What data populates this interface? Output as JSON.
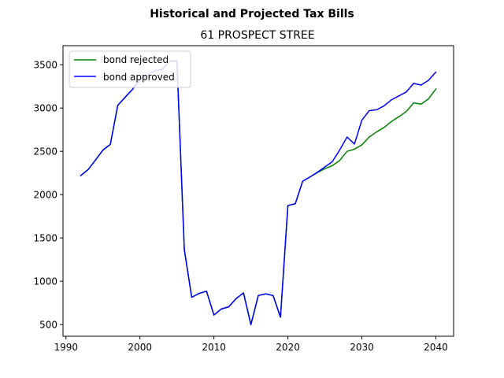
{
  "chart_data": {
    "type": "line",
    "suptitle": "Historical and Projected Tax Bills",
    "title": "61 PROSPECT STREE",
    "xlabel": "",
    "ylabel": "",
    "xlim": [
      1989.6,
      2042.4
    ],
    "ylim": [
      365,
      3720
    ],
    "xticks": [
      1990,
      2000,
      2010,
      2020,
      2030,
      2040
    ],
    "yticks": [
      500,
      1000,
      1500,
      2000,
      2500,
      3000,
      3500
    ],
    "grid": false,
    "legend_position": "upper-left",
    "series": [
      {
        "name": "bond rejected",
        "color": "#008000",
        "x": [
          1992,
          1993,
          1994,
          1995,
          1996,
          1997,
          1998,
          1999,
          2000,
          2001,
          2002,
          2003,
          2004,
          2005,
          2006,
          2007,
          2008,
          2009,
          2010,
          2011,
          2012,
          2013,
          2014,
          2015,
          2016,
          2017,
          2018,
          2019,
          2020,
          2021,
          2022,
          2023,
          2024,
          2025,
          2026,
          2027,
          2028,
          2029,
          2030,
          2031,
          2032,
          2033,
          2034,
          2035,
          2036,
          2037,
          2038,
          2039,
          2040
        ],
        "values": [
          2220,
          2290,
          2400,
          2515,
          2580,
          3030,
          3125,
          3215,
          3330,
          3380,
          3430,
          3445,
          3540,
          3545,
          1365,
          815,
          860,
          885,
          610,
          680,
          705,
          800,
          865,
          500,
          835,
          855,
          835,
          585,
          1875,
          1895,
          2155,
          2205,
          2255,
          2300,
          2335,
          2395,
          2500,
          2525,
          2575,
          2665,
          2725,
          2775,
          2845,
          2900,
          2960,
          3060,
          3045,
          3105,
          3220
        ]
      },
      {
        "name": "bond approved",
        "color": "#0000ff",
        "x": [
          1992,
          1993,
          1994,
          1995,
          1996,
          1997,
          1998,
          1999,
          2000,
          2001,
          2002,
          2003,
          2004,
          2005,
          2006,
          2007,
          2008,
          2009,
          2010,
          2011,
          2012,
          2013,
          2014,
          2015,
          2016,
          2017,
          2018,
          2019,
          2020,
          2021,
          2022,
          2023,
          2024,
          2025,
          2026,
          2027,
          2028,
          2029,
          2030,
          2031,
          2032,
          2033,
          2034,
          2035,
          2036,
          2037,
          2038,
          2039,
          2040
        ],
        "values": [
          2220,
          2290,
          2400,
          2515,
          2580,
          3030,
          3125,
          3215,
          3330,
          3380,
          3430,
          3445,
          3540,
          3545,
          1365,
          815,
          860,
          885,
          610,
          680,
          705,
          800,
          865,
          500,
          835,
          855,
          835,
          585,
          1875,
          1895,
          2155,
          2205,
          2260,
          2320,
          2380,
          2515,
          2665,
          2585,
          2860,
          2970,
          2980,
          3025,
          3095,
          3140,
          3185,
          3285,
          3265,
          3320,
          3415
        ]
      }
    ]
  }
}
